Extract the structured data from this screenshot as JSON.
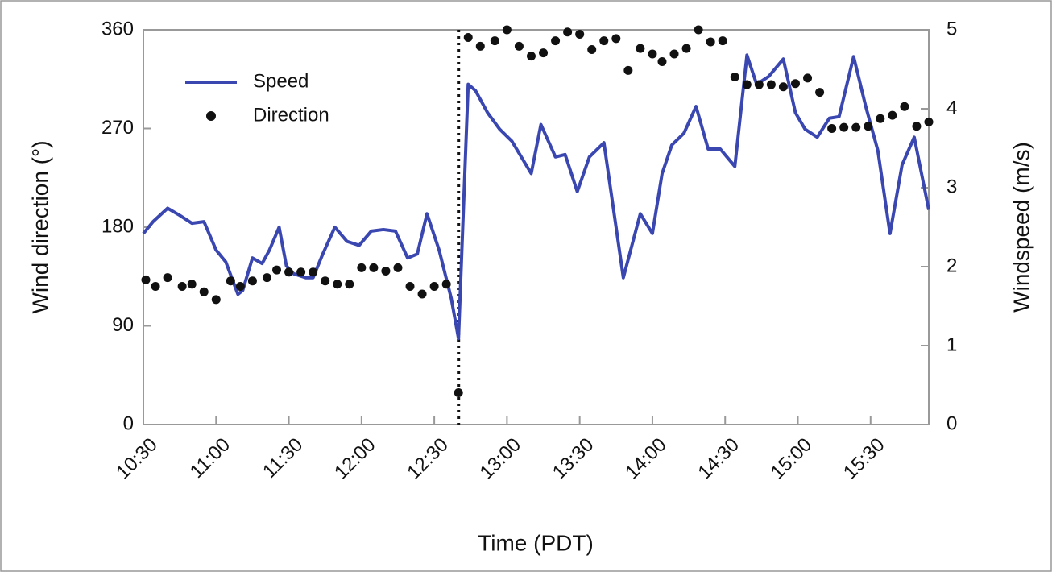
{
  "chart_data": {
    "type": "line",
    "xlabel": "Time (PDT)",
    "ylabel": "Wind direction (°)",
    "y2label": "Windspeed (m/s)",
    "xlim": [
      630,
      954
    ],
    "xticks": [
      {
        "value": 630,
        "label": "10:30"
      },
      {
        "value": 660,
        "label": "11:00"
      },
      {
        "value": 690,
        "label": "11:30"
      },
      {
        "value": 720,
        "label": "12:00"
      },
      {
        "value": 750,
        "label": "12:30"
      },
      {
        "value": 780,
        "label": "13:00"
      },
      {
        "value": 810,
        "label": "13:30"
      },
      {
        "value": 840,
        "label": "14:00"
      },
      {
        "value": 870,
        "label": "14:30"
      },
      {
        "value": 900,
        "label": "15:00"
      },
      {
        "value": 930,
        "label": "15:30"
      }
    ],
    "ylim": [
      0,
      360
    ],
    "yticks": [
      0,
      90,
      180,
      270,
      360
    ],
    "y2lim": [
      0,
      5
    ],
    "y2ticks": [
      0,
      1,
      2,
      3,
      4,
      5
    ],
    "vline_x": 760,
    "legend": "upper left",
    "series": [
      {
        "name": "Speed",
        "color": "#3a47b0",
        "axis": "y2",
        "style": "line",
        "x": [
          630,
          634,
          640,
          645,
          650,
          655,
          660,
          664,
          669,
          671,
          675,
          679,
          682,
          686,
          689,
          692,
          697,
          700,
          704,
          709,
          714,
          719,
          724,
          729,
          734,
          739,
          743,
          747,
          752,
          757,
          760,
          764,
          767,
          772,
          777,
          782,
          790,
          794,
          800,
          804,
          809,
          814,
          820,
          828,
          835,
          840,
          844,
          848,
          853,
          858,
          863,
          868,
          874,
          879,
          883,
          888,
          894,
          899,
          903,
          908,
          913,
          917,
          923,
          928,
          933,
          938,
          943,
          948,
          954
        ],
        "values": [
          2.42,
          2.57,
          2.74,
          2.65,
          2.55,
          2.57,
          2.21,
          2.06,
          1.65,
          1.7,
          2.11,
          2.04,
          2.21,
          2.5,
          2.01,
          1.91,
          1.86,
          1.86,
          2.16,
          2.5,
          2.32,
          2.27,
          2.45,
          2.47,
          2.45,
          2.11,
          2.16,
          2.67,
          2.21,
          1.6,
          1.09,
          4.31,
          4.23,
          3.95,
          3.74,
          3.59,
          3.18,
          3.8,
          3.39,
          3.42,
          2.95,
          3.39,
          3.57,
          1.86,
          2.67,
          2.42,
          3.18,
          3.54,
          3.69,
          4.03,
          3.49,
          3.49,
          3.27,
          4.68,
          4.31,
          4.41,
          4.63,
          3.95,
          3.74,
          3.64,
          3.88,
          3.9,
          4.66,
          4.03,
          3.47,
          2.42,
          3.29,
          3.64,
          2.72
        ]
      },
      {
        "name": "Direction",
        "color": "#111111",
        "axis": "y",
        "style": "dots",
        "x": [
          631,
          635,
          640,
          646,
          650,
          655,
          660,
          666,
          670,
          675,
          681,
          685,
          690,
          695,
          700,
          705,
          710,
          715,
          720,
          725,
          730,
          735,
          740,
          745,
          750,
          755,
          760,
          764,
          769,
          775,
          780,
          785,
          790,
          795,
          800,
          805,
          810,
          815,
          820,
          825,
          830,
          835,
          840,
          844,
          849,
          854,
          859,
          864,
          869,
          874,
          879,
          884,
          889,
          894,
          899,
          904,
          909,
          914,
          919,
          924,
          929,
          934,
          939,
          944,
          949,
          954
        ],
        "values": [
          132,
          126,
          134,
          126,
          128,
          121,
          114,
          131,
          126,
          131,
          134,
          141,
          139,
          139,
          139,
          131,
          128,
          128,
          143,
          143,
          140,
          143,
          126,
          119,
          126,
          128,
          29,
          353,
          345,
          350,
          360,
          345,
          336,
          339,
          350,
          358,
          356,
          342,
          350,
          352,
          323,
          343,
          338,
          331,
          338,
          343,
          360,
          349,
          350,
          317,
          310,
          310,
          310,
          308,
          311,
          316,
          303,
          270,
          271,
          271,
          272,
          279,
          282,
          290,
          272,
          276
        ]
      }
    ]
  }
}
